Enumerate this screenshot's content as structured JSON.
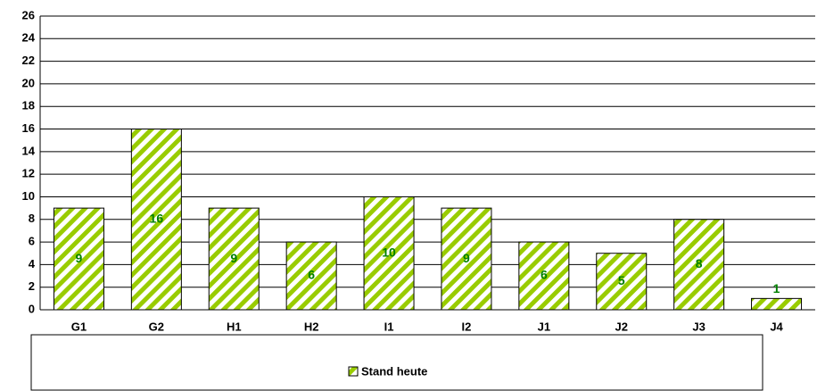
{
  "chart_data": {
    "type": "bar",
    "categories": [
      "G1",
      "G2",
      "H1",
      "H2",
      "I1",
      "I2",
      "J1",
      "J2",
      "J3",
      "J4"
    ],
    "series": [
      {
        "name": "Stand heute",
        "color": "#99cc00",
        "values": [
          9,
          16,
          9,
          6,
          10,
          9,
          6,
          5,
          8,
          1
        ]
      }
    ],
    "ylim": [
      0,
      26
    ],
    "yticks": [
      0,
      2,
      4,
      6,
      8,
      10,
      12,
      14,
      16,
      18,
      20,
      22,
      24,
      26
    ],
    "grid": true
  }
}
